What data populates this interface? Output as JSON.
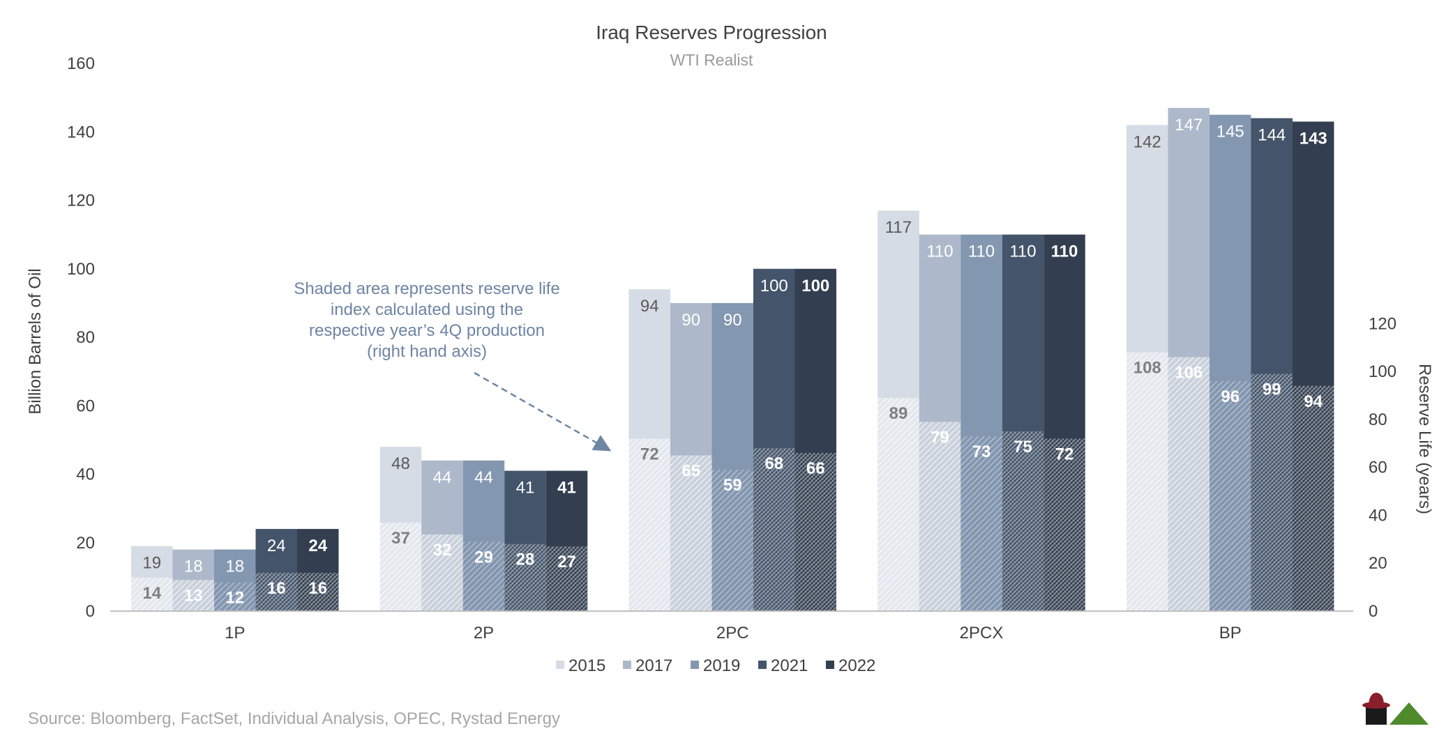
{
  "chart_data": {
    "type": "bar",
    "title": "Iraq Reserves Progression",
    "subtitle": "WTI Realist",
    "ylabel": "Billion Barrels of Oil",
    "y2label": "Reserve Life (years)",
    "ylim": [
      0,
      160
    ],
    "yticks": [
      0,
      20,
      40,
      60,
      80,
      100,
      120,
      140,
      160
    ],
    "y2lim": [
      0,
      228.6
    ],
    "y2ticks": [
      0,
      20,
      40,
      60,
      80,
      100,
      120
    ],
    "categories": [
      "1P",
      "2P",
      "2PC",
      "2PCX",
      "BP"
    ],
    "series": [
      {
        "name": "2015",
        "color": "#d6dce5",
        "values": [
          19,
          48,
          94,
          117,
          142
        ],
        "reserve_life": [
          14,
          37,
          72,
          89,
          108
        ]
      },
      {
        "name": "2017",
        "color": "#adb9ca",
        "values": [
          18,
          44,
          90,
          110,
          147
        ],
        "reserve_life": [
          13,
          32,
          65,
          79,
          106
        ]
      },
      {
        "name": "2019",
        "color": "#8497b0",
        "values": [
          18,
          44,
          90,
          110,
          145
        ],
        "reserve_life": [
          12,
          29,
          59,
          73,
          96
        ]
      },
      {
        "name": "2021",
        "color": "#44546a",
        "values": [
          24,
          41,
          100,
          110,
          144
        ],
        "reserve_life": [
          16,
          28,
          68,
          75,
          99
        ]
      },
      {
        "name": "2022",
        "color": "#333f50",
        "values": [
          24,
          41,
          100,
          110,
          143
        ],
        "reserve_life": [
          16,
          27,
          66,
          72,
          94
        ]
      }
    ],
    "annotation": [
      "Shaded area represents reserve life",
      "index calculated using the",
      "respective year’s 4Q production",
      "(right hand axis)"
    ],
    "legend_position": "bottom",
    "grid": false
  },
  "source": "Source: Bloomberg, FactSet, Individual Analysis, OPEC, Rystad Energy",
  "logo_icon": "hat-and-mountain-logo-icon"
}
